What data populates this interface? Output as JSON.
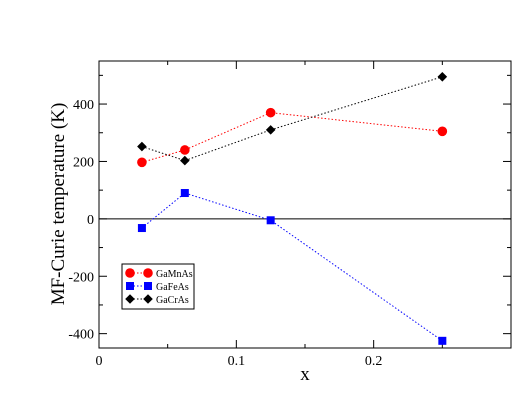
{
  "chart_data": {
    "type": "line",
    "title": "",
    "xlabel": "x",
    "ylabel": "MF-Curie temperature (K)",
    "xlim": [
      0,
      0.3
    ],
    "ylim": [
      -450,
      550
    ],
    "x_ticks": [
      0,
      0.1,
      0.2
    ],
    "x_tick_labels": [
      "0",
      "0.1",
      "0.2"
    ],
    "y_ticks": [
      -400,
      -200,
      0,
      200,
      400
    ],
    "y_tick_labels": [
      "-400",
      "-200",
      "0",
      "200",
      "400"
    ],
    "zero_line": true,
    "grid": false,
    "legend_position": "lower-left",
    "series": [
      {
        "name": "GaMnAs",
        "color": "#ff0000",
        "marker": "circle",
        "line_style": "dotted",
        "x": [
          0.03125,
          0.0625,
          0.125,
          0.25
        ],
        "y": [
          197,
          240,
          370,
          305
        ]
      },
      {
        "name": "GaFeAs",
        "color": "#0000ff",
        "marker": "square",
        "line_style": "dotted",
        "x": [
          0.03125,
          0.0625,
          0.125,
          0.25
        ],
        "y": [
          -32,
          90,
          -5,
          -425
        ]
      },
      {
        "name": "GaCrAs",
        "color": "#000000",
        "marker": "diamond",
        "line_style": "dotted",
        "x": [
          0.03125,
          0.0625,
          0.125,
          0.25
        ],
        "y": [
          252,
          203,
          310,
          495
        ]
      }
    ]
  }
}
